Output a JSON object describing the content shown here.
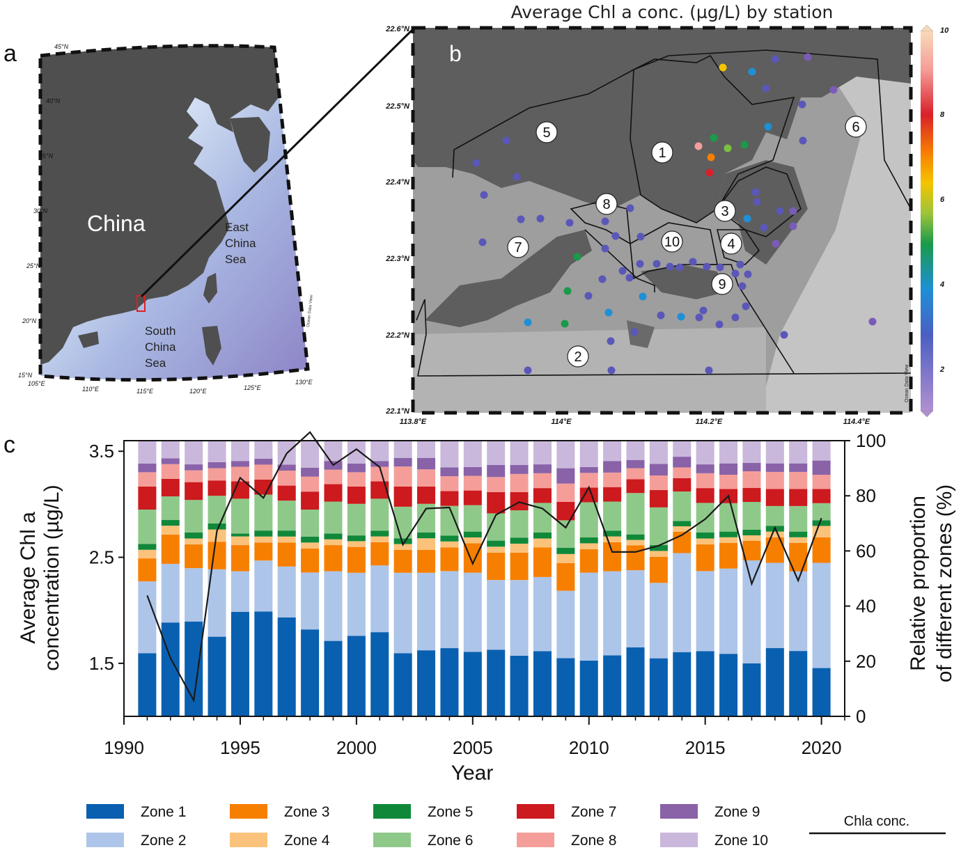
{
  "panel_a": {
    "label": "a",
    "country": "China",
    "sea_east": [
      "East",
      "China",
      "Sea"
    ],
    "sea_south": [
      "South",
      "China",
      "Sea"
    ],
    "lat_ticks": [
      "45°N",
      "40°N",
      "35°N",
      "30°N",
      "25°N",
      "20°N",
      "15°N"
    ],
    "lon_ticks": [
      "105°E",
      "110°E",
      "115°E",
      "120°E",
      "125°E",
      "130°E"
    ],
    "watermark": "Ocean Data View",
    "colors": {
      "land": "#4d4d4d",
      "sea_light": "#e6eef8",
      "sea_deep": "#8c85c6",
      "frame": "#1a1a1a",
      "highlight": "#e02020"
    }
  },
  "panel_b": {
    "label": "b",
    "title": "Average Chl a conc. (µg/L) by station",
    "lat_ticks": [
      "22.6°N",
      "22.5°N",
      "22.4°N",
      "22.3°N",
      "22.2°N",
      "22.1°N"
    ],
    "lon_ticks": [
      "113.8°E",
      "114°E",
      "114.2°E",
      "114.4°E"
    ],
    "colorbar_ticks": [
      "10",
      "8",
      "6",
      "4",
      "2"
    ],
    "zone_labels": [
      "1",
      "2",
      "3",
      "4",
      "5",
      "6",
      "7",
      "8",
      "9",
      "10"
    ],
    "watermark": "Ocean Data View",
    "colors": {
      "land": "#5a5a5a",
      "water": "#9a9a9a",
      "water_light": "#c4c4c4"
    }
  },
  "panel_c": {
    "label": "c",
    "legend_line_label": "Chla conc."
  },
  "chart_data": {
    "type": "bar",
    "title": "",
    "xlabel": "Year",
    "ylabel_left": "Average Chl a concentration (µg/L)",
    "ylabel_right": "Relative proportion of different zones (%)",
    "ylabel_left_lines": [
      "Average Chl a",
      "concentration (µg/L)"
    ],
    "ylabel_right_lines": [
      "Relative proportion",
      "of  different zones (%)"
    ],
    "x_ticks": [
      "1990",
      "1995",
      "2000",
      "2005",
      "2010",
      "2015",
      "2020"
    ],
    "y_left_ticks": [
      "1.5",
      "2.5",
      "3.5"
    ],
    "y_right_ticks": [
      "0",
      "20",
      "40",
      "60",
      "80",
      "100"
    ],
    "ylim_left": [
      1.0,
      3.6
    ],
    "ylim_right": [
      0,
      100
    ],
    "xlim": [
      1990,
      2021
    ],
    "stacked": true,
    "legend": "bottom",
    "categories": [
      1991,
      1992,
      1993,
      1994,
      1995,
      1996,
      1997,
      1998,
      1999,
      2000,
      2001,
      2002,
      2003,
      2004,
      2005,
      2006,
      2007,
      2008,
      2009,
      2010,
      2011,
      2012,
      2013,
      2014,
      2015,
      2016,
      2017,
      2018,
      2019,
      2020
    ],
    "series": [
      {
        "name": "Zone 1",
        "color": "#0a60b0",
        "values": [
          22,
          32,
          32,
          26,
          36,
          35,
          33,
          29,
          26,
          28,
          29,
          22,
          23,
          23,
          22,
          22,
          20,
          22,
          19,
          19,
          21,
          25,
          20,
          24,
          22,
          22,
          19,
          24,
          23,
          17
        ]
      },
      {
        "name": "Zone 2",
        "color": "#adc5e8",
        "values": [
          25,
          20,
          18,
          22,
          14,
          17,
          17,
          19,
          24,
          22,
          23,
          28,
          27,
          26,
          27,
          23,
          25,
          25,
          22,
          30,
          29,
          28,
          26,
          37,
          27,
          30,
          37,
          30,
          28,
          37
        ]
      },
      {
        "name": "Zone 3",
        "color": "#f77f00",
        "values": [
          8,
          10,
          8,
          9,
          9,
          6,
          8,
          8,
          9,
          9,
          8,
          8,
          8,
          8,
          10,
          9,
          9,
          10,
          9,
          8,
          10,
          9,
          9,
          8,
          9,
          9,
          7,
          9,
          10,
          9
        ]
      },
      {
        "name": "Zone 4",
        "color": "#fbc27b",
        "values": [
          3,
          3,
          2,
          4,
          3,
          2,
          2,
          2,
          2,
          2,
          2,
          2,
          4,
          2,
          2,
          2,
          3,
          3,
          3,
          2,
          2,
          2,
          2,
          2,
          2,
          2,
          2,
          2,
          2,
          4
        ]
      },
      {
        "name": "Zone 5",
        "color": "#10883a",
        "values": [
          2,
          2,
          2,
          2,
          1,
          2,
          2,
          2,
          2,
          2,
          2,
          2,
          2,
          2,
          2,
          2,
          2,
          2,
          2,
          2,
          2,
          2,
          2,
          2,
          2,
          2,
          2,
          2,
          2,
          2
        ]
      },
      {
        "name": "Zone 6",
        "color": "#8fc98a",
        "values": [
          12,
          8,
          11,
          9,
          12,
          12,
          10,
          9,
          11,
          11,
          11,
          11,
          10,
          10,
          9,
          9,
          9,
          10,
          9,
          12,
          10,
          15,
          13,
          11,
          10,
          10,
          10,
          7,
          9,
          6
        ]
      },
      {
        "name": "Zone 7",
        "color": "#cc1a1e",
        "values": [
          8,
          6,
          6,
          5,
          6,
          5,
          5,
          6,
          6,
          6,
          6,
          7,
          6,
          5,
          5,
          7,
          6,
          5,
          6,
          5,
          5,
          5,
          6,
          5,
          5,
          5,
          5,
          6,
          6,
          5
        ]
      },
      {
        "name": "Zone 8",
        "color": "#f59e99",
        "values": [
          5,
          5,
          4,
          4,
          5,
          5,
          5,
          5,
          5,
          5,
          5,
          7,
          6,
          5,
          5,
          5,
          6,
          5,
          6,
          5,
          5,
          4,
          5,
          4,
          5,
          5,
          6,
          6,
          6,
          5
        ]
      },
      {
        "name": "Zone 9",
        "color": "#8962a8",
        "values": [
          3,
          2,
          2,
          2,
          2,
          2,
          2,
          3,
          3,
          3,
          2,
          3,
          4,
          3,
          3,
          4,
          3,
          3,
          5,
          2,
          4,
          3,
          4,
          4,
          3,
          4,
          3,
          3,
          3,
          5
        ]
      },
      {
        "name": "Zone 10",
        "color": "#c9b8db",
        "values": [
          8,
          6,
          8,
          7,
          7,
          6,
          8,
          9,
          7,
          8,
          7,
          6,
          6,
          9,
          9,
          8,
          8,
          8,
          9,
          9,
          7,
          7,
          8,
          6,
          8,
          8,
          8,
          8,
          8,
          7
        ]
      }
    ],
    "line_series": {
      "name": "Chla conc.",
      "color": "#1a1a1a",
      "values": [
        2.14,
        1.55,
        1.15,
        2.75,
        3.25,
        3.06,
        3.48,
        3.68,
        3.37,
        3.52,
        3.35,
        2.62,
        2.96,
        2.97,
        2.44,
        2.9,
        3.02,
        2.96,
        2.78,
        3.16,
        2.55,
        2.55,
        2.61,
        2.71,
        2.86,
        3.08,
        2.25,
        2.78,
        2.28,
        2.87
      ]
    }
  }
}
